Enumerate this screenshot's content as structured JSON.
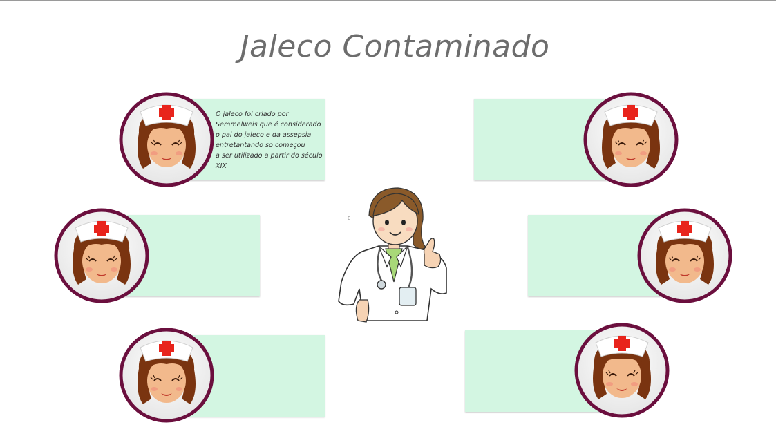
{
  "slide": {
    "title": "Jaleco Contaminado",
    "stray_mark": "0"
  },
  "cards": [
    {
      "id": "top-left",
      "text": "O jaleco foi criado por\nSemmelweis que é considerado\n o pai do jaleco e da assepsia\nentretantando so começou\na ser utilizado a partir do século\nXIX"
    },
    {
      "id": "middle-left",
      "text": ""
    },
    {
      "id": "bottom-left",
      "text": ""
    },
    {
      "id": "top-right",
      "text": ""
    },
    {
      "id": "middle-right",
      "text": ""
    },
    {
      "id": "bottom-right",
      "text": ""
    }
  ],
  "icons": {
    "avatar": "nurse-avatar-icon",
    "center": "doctor-thumbs-up-illustration"
  },
  "colors": {
    "card_fill": "#d3f6e2",
    "avatar_ring": "#6b0f3e",
    "cross": "#e8241c",
    "title": "#6d6d6d"
  }
}
